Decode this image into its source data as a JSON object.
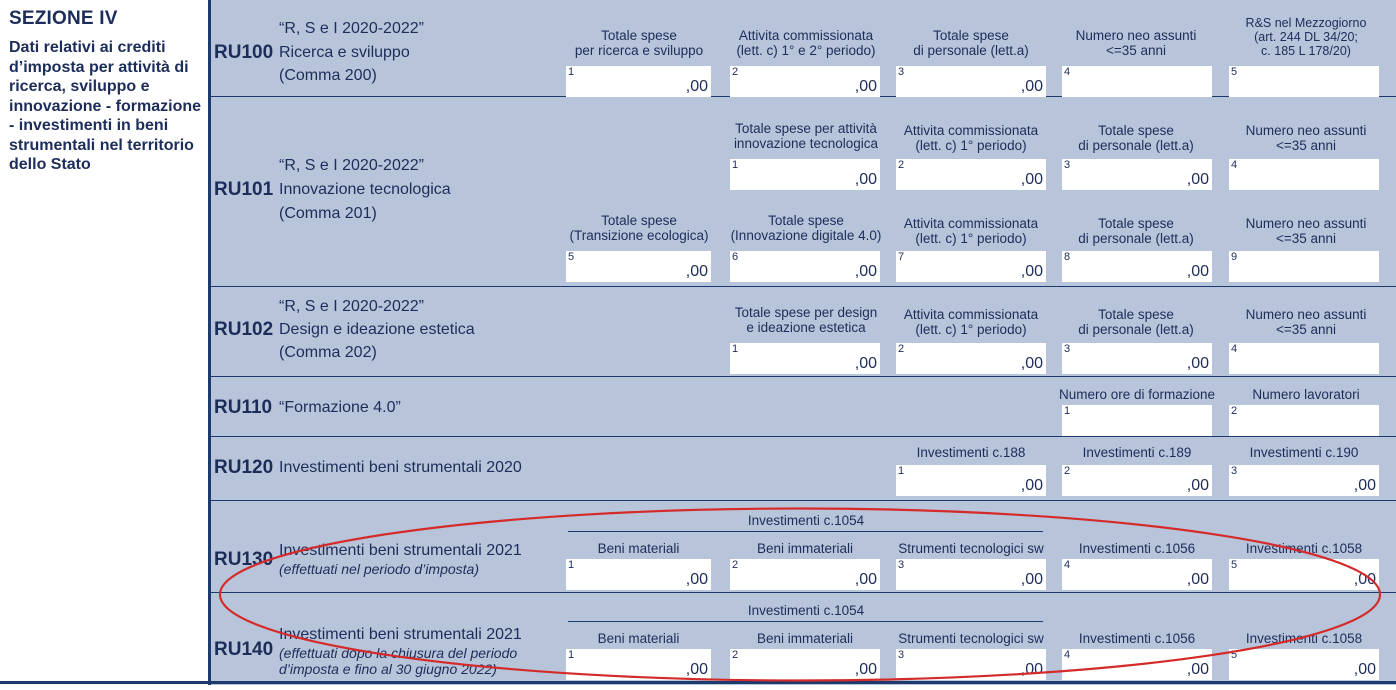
{
  "section": {
    "title": "SEZIONE IV",
    "description": "Dati relativi ai crediti d’imposta per attività di ricerca, sviluppo e innovazione - formazione - investimenti in beni strumentali nel territorio dello Stato"
  },
  "rows": {
    "ru100": {
      "code": "RU100",
      "line1": "“R, S e I 2020-2022”",
      "line2": "Ricerca e sviluppo",
      "line3": "(Comma 200)",
      "fields": [
        {
          "num": "1",
          "label1": "Totale spese",
          "label2": "per ricerca e sviluppo",
          "value": ",00"
        },
        {
          "num": "2",
          "label1": "Attivita commissionata",
          "label2": "(lett. c) 1° e 2° periodo)",
          "value": ",00"
        },
        {
          "num": "3",
          "label1": "Totale spese",
          "label2": "di personale (lett.a)",
          "value": ",00"
        },
        {
          "num": "4",
          "label1": "Numero neo assunti",
          "label2": "<=35 anni",
          "value": ""
        },
        {
          "num": "5",
          "label1": "R&S nel Mezzogiorno",
          "label2": "(art. 244 DL 34/20;",
          "label3": "c. 185 L 178/20)",
          "value": ""
        }
      ]
    },
    "ru101": {
      "code": "RU101",
      "line1": "“R, S e I 2020-2022”",
      "line2": "Innovazione tecnologica",
      "line3": "(Comma 201)",
      "fields": [
        {
          "num": "1",
          "label1": "Totale spese per attività",
          "label2": "innovazione tecnologica",
          "value": ",00"
        },
        {
          "num": "2",
          "label1": "Attivita commissionata",
          "label2": "(lett. c) 1° periodo)",
          "value": ",00"
        },
        {
          "num": "3",
          "label1": "Totale spese",
          "label2": "di personale (lett.a)",
          "value": ",00"
        },
        {
          "num": "4",
          "label1": "Numero neo assunti",
          "label2": "<=35 anni",
          "value": ""
        },
        {
          "num": "5",
          "label1": "Totale spese",
          "label2": "(Transizione ecologica)",
          "value": ",00"
        },
        {
          "num": "6",
          "label1": "Totale spese",
          "label2": "(Innovazione digitale 4.0)",
          "value": ",00"
        },
        {
          "num": "7",
          "label1": "Attivita commissionata",
          "label2": "(lett. c) 1° periodo)",
          "value": ",00"
        },
        {
          "num": "8",
          "label1": "Totale spese",
          "label2": "di personale (lett.a)",
          "value": ",00"
        },
        {
          "num": "9",
          "label1": "Numero neo assunti",
          "label2": "<=35 anni",
          "value": ""
        }
      ]
    },
    "ru102": {
      "code": "RU102",
      "line1": "“R, S e I 2020-2022”",
      "line2": "Design e ideazione estetica",
      "line3": "(Comma 202)",
      "fields": [
        {
          "num": "1",
          "label1": "Totale spese per design",
          "label2": "e ideazione estetica",
          "value": ",00"
        },
        {
          "num": "2",
          "label1": "Attivita commissionata",
          "label2": "(lett. c) 1° periodo)",
          "value": ",00"
        },
        {
          "num": "3",
          "label1": "Totale spese",
          "label2": "di personale (lett.a)",
          "value": ",00"
        },
        {
          "num": "4",
          "label1": "Numero neo assunti",
          "label2": "<=35 anni",
          "value": ""
        }
      ]
    },
    "ru110": {
      "code": "RU110",
      "line1": "“Formazione 4.0”",
      "fields": [
        {
          "num": "1",
          "label1": "Numero ore di formazione",
          "value": ""
        },
        {
          "num": "2",
          "label1": "Numero lavoratori",
          "value": ""
        }
      ]
    },
    "ru120": {
      "code": "RU120",
      "line1": "Investimenti beni strumentali 2020",
      "fields": [
        {
          "num": "1",
          "label1": "Investimenti c.188",
          "value": ",00"
        },
        {
          "num": "2",
          "label1": "Investimenti c.189",
          "value": ",00"
        },
        {
          "num": "3",
          "label1": "Investimenti c.190",
          "value": ",00"
        }
      ]
    },
    "ru130": {
      "code": "RU130",
      "line1": "Investimenti beni strumentali 2021",
      "line2": "(effettuati nel periodo d’imposta)",
      "group_label": "Investimenti c.1054",
      "fields": [
        {
          "num": "1",
          "label1": "Beni materiali",
          "value": ",00"
        },
        {
          "num": "2",
          "label1": "Beni immateriali",
          "value": ",00"
        },
        {
          "num": "3",
          "label1": "Strumenti tecnologici sw",
          "value": ",00"
        },
        {
          "num": "4",
          "label1": "Investimenti c.1056",
          "value": ",00"
        },
        {
          "num": "5",
          "label1": "Investimenti c.1058",
          "value": ",00"
        }
      ]
    },
    "ru140": {
      "code": "RU140",
      "line1": "Investimenti beni strumentali 2021",
      "line2": "(effettuati dopo la chiusura del periodo",
      "line3": "d’imposta e fino al 30 giugno 2022)",
      "group_label": "Investimenti c.1054",
      "fields": [
        {
          "num": "1",
          "label1": "Beni materiali",
          "value": ",00"
        },
        {
          "num": "2",
          "label1": "Beni immateriali",
          "value": ",00"
        },
        {
          "num": "3",
          "label1": "Strumenti tecnologici sw",
          "value": ",00"
        },
        {
          "num": "4",
          "label1": "Investimenti c.1056",
          "value": ",00"
        },
        {
          "num": "5",
          "label1": "Investimenti c.1058",
          "value": ",00"
        }
      ]
    }
  },
  "colors": {
    "background": "#b8c4d9",
    "text": "#1d2d5a",
    "rule": "#1d3a6e",
    "highlight": "#d42a2a"
  }
}
